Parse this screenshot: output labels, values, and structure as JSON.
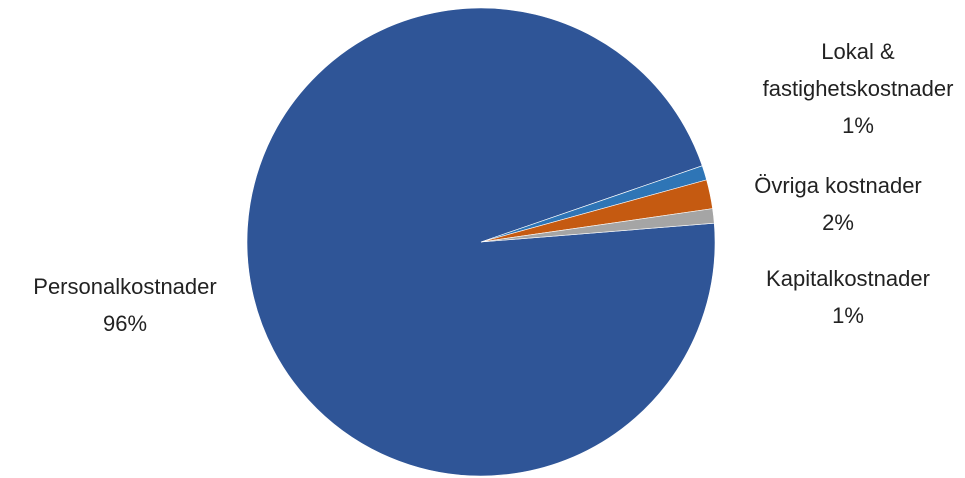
{
  "chart_data": {
    "type": "pie",
    "categories": [
      "Personalkostnader",
      "Lokal & fastighetskostnader",
      "Övriga kostnader",
      "Kapitalkostnader"
    ],
    "values": [
      96,
      1,
      2,
      1
    ],
    "value_labels": [
      "96%",
      "1%",
      "2%",
      "1%"
    ],
    "colors": [
      "#2f5597",
      "#2e75b6",
      "#c55a11",
      "#a5a5a5"
    ]
  }
}
